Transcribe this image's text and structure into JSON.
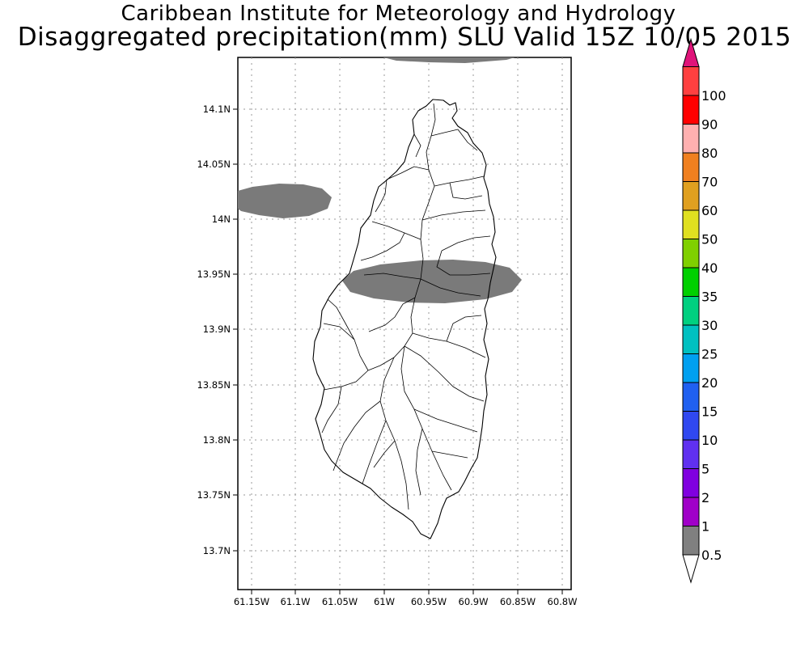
{
  "title": {
    "line1": "Caribbean Institute for Meteorology and Hydrology",
    "line2": "Disaggregated precipitation(mm) SLU Valid 15Z 10/05 2015"
  },
  "map": {
    "lon_ticks": [
      "61.15W",
      "61.1W",
      "61.05W",
      "61W",
      "60.95W",
      "60.9W",
      "60.85W",
      "60.8W"
    ],
    "lat_ticks": [
      "14.1N",
      "14.05N",
      "14N",
      "13.95N",
      "13.9N",
      "13.85N",
      "13.8N",
      "13.75N",
      "13.7N"
    ],
    "land_outline_color": "#000000",
    "precip_fill_color": "#7a7a7a",
    "precip_category": "0.5-1"
  },
  "colorbar": {
    "labels": [
      "0.5",
      "1",
      "2",
      "5",
      "10",
      "15",
      "20",
      "25",
      "30",
      "35",
      "40",
      "50",
      "60",
      "70",
      "80",
      "90",
      "100"
    ],
    "colors": [
      "#808080",
      "#a000c8",
      "#8000e0",
      "#6030f0",
      "#3048f0",
      "#2060f0",
      "#00a0f0",
      "#00c0c0",
      "#00d080",
      "#00d000",
      "#80d000",
      "#e0e020",
      "#e0a020",
      "#f08020",
      "#ffb0b0",
      "#ff0000",
      "#ff4040"
    ],
    "top_arrow_color": "#e0147a",
    "bottom_arrow_color": "#ffffff"
  }
}
